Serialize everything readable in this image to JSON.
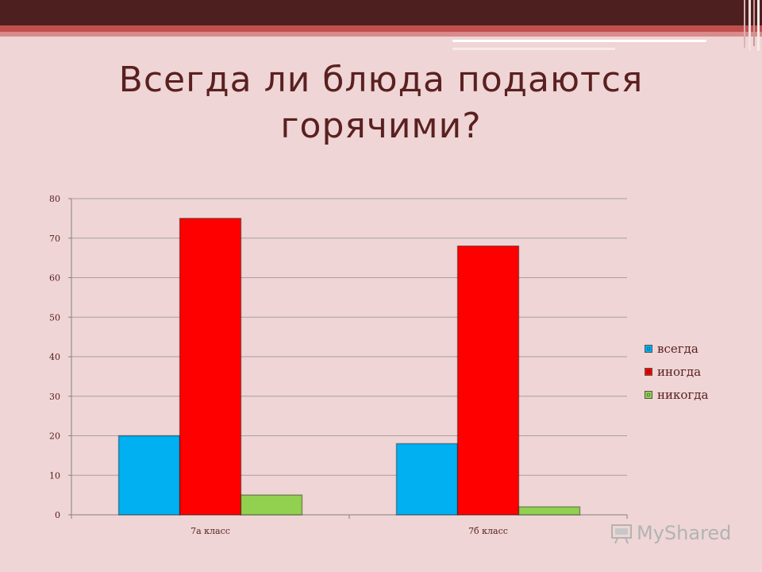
{
  "slide": {
    "title_line1": "Всегда ли блюда подаются",
    "title_line2": "горячими?",
    "watermark": "MyShared"
  },
  "colors": {
    "background": "#efd5d5",
    "topbar": "#4d1f1f",
    "accent": "#c0504d",
    "title": "#5a2020"
  },
  "chart_data": {
    "type": "bar",
    "categories": [
      "7а класс",
      "7б класс"
    ],
    "series": [
      {
        "name": "всегда",
        "values": [
          20,
          18
        ],
        "color": "#00b0f0"
      },
      {
        "name": "иногда",
        "values": [
          75,
          68
        ],
        "color": "#ff0000"
      },
      {
        "name": "никогда",
        "values": [
          5,
          2
        ],
        "color": "#92d050"
      }
    ],
    "ylim": [
      0,
      80
    ],
    "yticks": [
      0,
      10,
      20,
      30,
      40,
      50,
      60,
      70,
      80
    ],
    "grid": true,
    "legend_position": "right"
  }
}
